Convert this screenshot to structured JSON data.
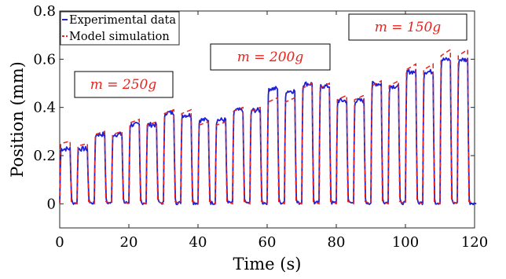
{
  "chart_data": {
    "type": "line",
    "xlabel": "Time (s)",
    "ylabel": "Position (mm)",
    "xlim": [
      0,
      120
    ],
    "ylim": [
      -0.1,
      0.8
    ],
    "x_ticks": [
      {
        "value": 0,
        "label": "0"
      },
      {
        "value": 20,
        "label": "20"
      },
      {
        "value": 40,
        "label": "40"
      },
      {
        "value": 60,
        "label": "60"
      },
      {
        "value": 80,
        "label": "80"
      },
      {
        "value": 100,
        "label": "100"
      },
      {
        "value": 120,
        "label": "120"
      }
    ],
    "y_ticks": [
      {
        "value": 0,
        "label": "0"
      },
      {
        "value": 0.2,
        "label": "0.2"
      },
      {
        "value": 0.4,
        "label": "0.4"
      },
      {
        "value": 0.6,
        "label": "0.6"
      },
      {
        "value": 0.8,
        "label": "0.8"
      }
    ],
    "grid": false,
    "legend_position": "top-left",
    "pulse_period_s": 5,
    "pulse_duration_s": 3,
    "series": [
      {
        "name": "Experimental data",
        "color": "#1f1fd8",
        "style": "solid",
        "pulse_plateaus": [
          0.24,
          0.24,
          0.3,
          0.3,
          0.34,
          0.34,
          0.39,
          0.38,
          0.36,
          0.36,
          0.4,
          0.4,
          0.49,
          0.48,
          0.51,
          0.5,
          0.44,
          0.44,
          0.51,
          0.5,
          0.56,
          0.56,
          0.61,
          0.61
        ]
      },
      {
        "name": "Model simulation",
        "color": "#e8231e",
        "style": "dashed",
        "pulse_plateaus": [
          0.26,
          0.25,
          0.3,
          0.3,
          0.35,
          0.34,
          0.39,
          0.39,
          0.34,
          0.34,
          0.4,
          0.4,
          0.44,
          0.44,
          0.5,
          0.5,
          0.45,
          0.45,
          0.51,
          0.51,
          0.58,
          0.58,
          0.64,
          0.64
        ]
      }
    ],
    "annotations": [
      {
        "text": "m = 250g"
      },
      {
        "text": "m = 200g"
      },
      {
        "text": "m = 150g"
      }
    ]
  }
}
